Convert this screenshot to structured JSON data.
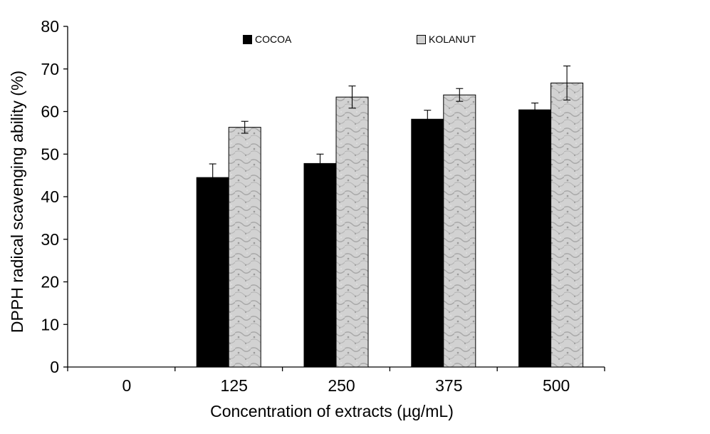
{
  "chart_data": {
    "type": "bar",
    "categories": [
      "0",
      "125",
      "250",
      "375",
      "500"
    ],
    "series": [
      {
        "name": "COCOA",
        "values": [
          0,
          44.5,
          47.8,
          58.2,
          60.4
        ],
        "errors": [
          0,
          3.2,
          2.2,
          2.1,
          1.6
        ],
        "color": "#000000"
      },
      {
        "name": "KOLANUT",
        "values": [
          0,
          56.3,
          63.4,
          63.9,
          66.7
        ],
        "errors": [
          0,
          1.4,
          2.6,
          1.5,
          4.0
        ],
        "color": "#d0d0d0"
      }
    ],
    "xlabel": "Concentration of extracts (µg/mL)",
    "ylabel": "DPPH radical scavenging ability (%)",
    "ylim": [
      0,
      80
    ],
    "yticks": [
      "0",
      "10",
      "20",
      "30",
      "40",
      "50",
      "60",
      "70",
      "80"
    ],
    "grid": false,
    "legend_position": "top"
  }
}
